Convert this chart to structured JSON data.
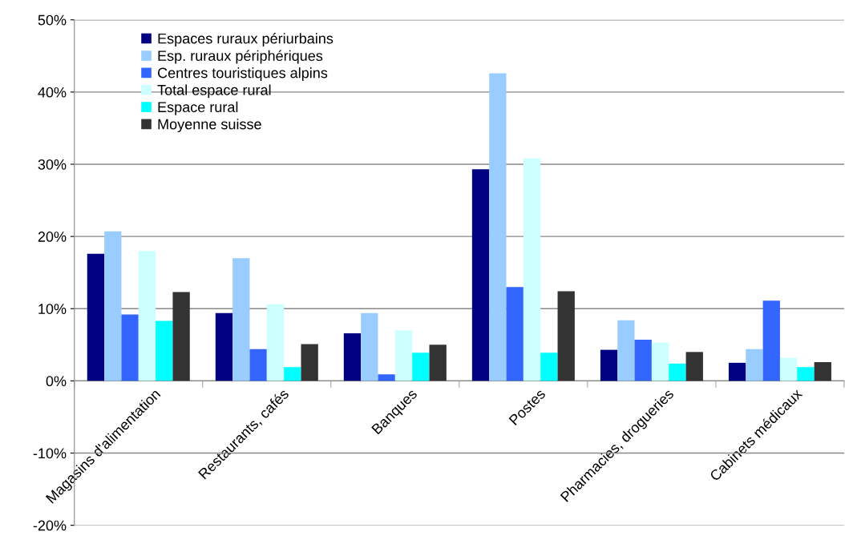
{
  "chart_data": {
    "type": "bar",
    "categories": [
      "Magasins d'alimentation",
      "Restaurants, cafés",
      "Banques",
      "Postes",
      "Pharmacies, drogueries",
      "Cabinets médicaux"
    ],
    "series": [
      {
        "name": "Espaces ruraux périurbains",
        "color": "#000080",
        "values": [
          17.6,
          9.4,
          6.6,
          29.3,
          4.3,
          2.5
        ]
      },
      {
        "name": "Esp. ruraux périphériques",
        "color": "#99ccff",
        "values": [
          20.7,
          17.0,
          9.4,
          42.6,
          8.4,
          4.4
        ]
      },
      {
        "name": "Centres touristiques alpins",
        "color": "#3366ff",
        "values": [
          9.2,
          4.4,
          0.9,
          13.0,
          5.7,
          11.1
        ]
      },
      {
        "name": "Total espace rural",
        "color": "#ccffff",
        "values": [
          18.0,
          10.6,
          7.0,
          30.8,
          5.3,
          3.2
        ]
      },
      {
        "name": "Espace rural",
        "color": "#00ffff",
        "values": [
          8.3,
          1.9,
          3.9,
          3.9,
          2.4,
          1.9
        ]
      },
      {
        "name": "Moyenne suisse",
        "color": "#333333",
        "values": [
          12.3,
          5.1,
          5.0,
          12.4,
          4.0,
          2.6
        ]
      }
    ],
    "ylim": [
      -20,
      50
    ],
    "yticks": [
      {
        "value": -20,
        "label": "-20%"
      },
      {
        "value": -10,
        "label": "-10%"
      },
      {
        "value": 0,
        "label": "0%"
      },
      {
        "value": 10,
        "label": "10%"
      },
      {
        "value": 20,
        "label": "20%"
      },
      {
        "value": 30,
        "label": "30%"
      },
      {
        "value": 40,
        "label": "40%"
      },
      {
        "value": 50,
        "label": "50%"
      }
    ],
    "grid": "y",
    "legend": "top left"
  }
}
